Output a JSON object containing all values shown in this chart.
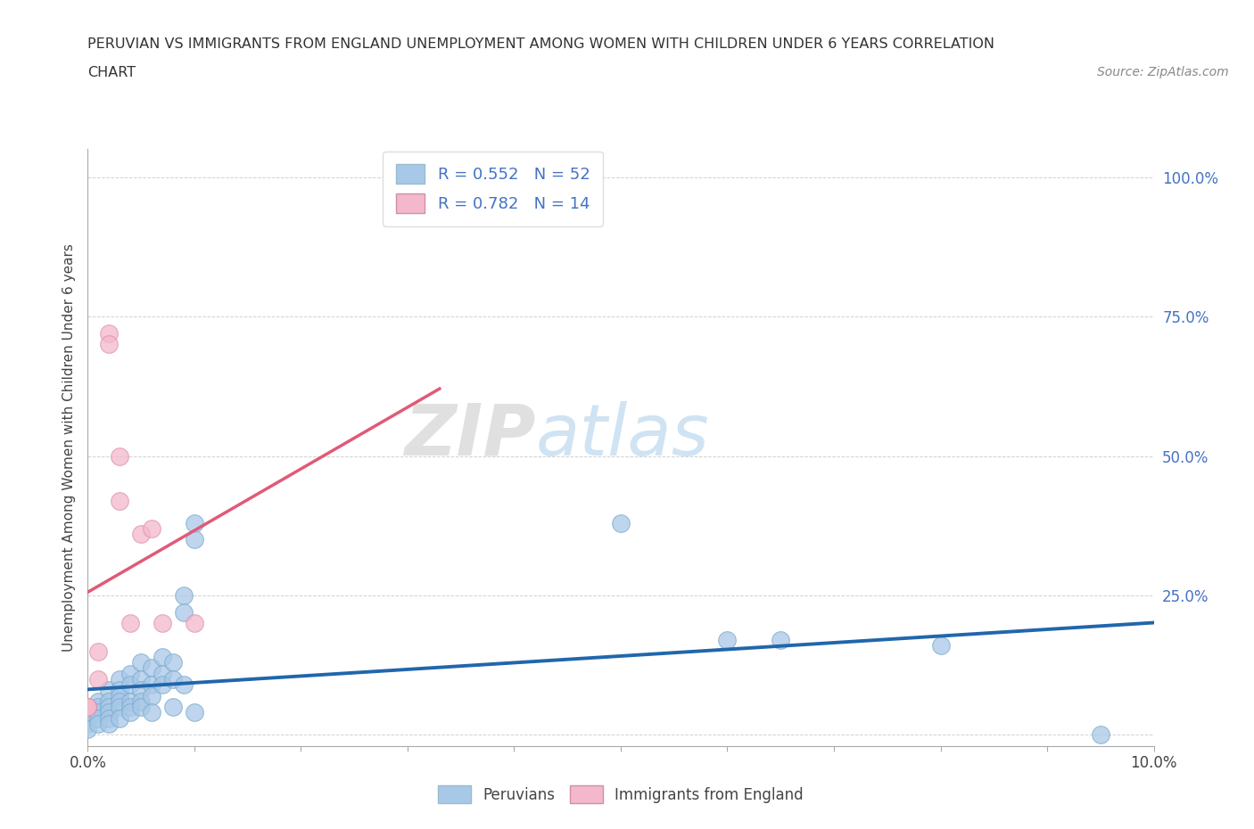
{
  "title_line1": "PERUVIAN VS IMMIGRANTS FROM ENGLAND UNEMPLOYMENT AMONG WOMEN WITH CHILDREN UNDER 6 YEARS CORRELATION",
  "title_line2": "CHART",
  "source": "Source: ZipAtlas.com",
  "ylabel_label": "Unemployment Among Women with Children Under 6 years",
  "xlim": [
    0.0,
    0.1
  ],
  "ylim": [
    -0.02,
    1.05
  ],
  "legend_R_blue": "R = 0.552",
  "legend_N_blue": "N = 52",
  "legend_R_pink": "R = 0.782",
  "legend_N_pink": "N = 14",
  "blue_color": "#a8c8e8",
  "pink_color": "#f4b8cc",
  "blue_line_color": "#2166ac",
  "pink_line_color": "#e05a78",
  "watermark_zip": "ZIP",
  "watermark_atlas": "atlas",
  "peruvians": [
    [
      0.0,
      0.05
    ],
    [
      0.0,
      0.04
    ],
    [
      0.0,
      0.02
    ],
    [
      0.0,
      0.01
    ],
    [
      0.001,
      0.06
    ],
    [
      0.001,
      0.05
    ],
    [
      0.001,
      0.04
    ],
    [
      0.001,
      0.03
    ],
    [
      0.001,
      0.02
    ],
    [
      0.002,
      0.08
    ],
    [
      0.002,
      0.06
    ],
    [
      0.002,
      0.05
    ],
    [
      0.002,
      0.04
    ],
    [
      0.002,
      0.03
    ],
    [
      0.002,
      0.02
    ],
    [
      0.003,
      0.1
    ],
    [
      0.003,
      0.08
    ],
    [
      0.003,
      0.07
    ],
    [
      0.003,
      0.06
    ],
    [
      0.003,
      0.05
    ],
    [
      0.003,
      0.03
    ],
    [
      0.004,
      0.11
    ],
    [
      0.004,
      0.09
    ],
    [
      0.004,
      0.06
    ],
    [
      0.004,
      0.05
    ],
    [
      0.004,
      0.04
    ],
    [
      0.005,
      0.13
    ],
    [
      0.005,
      0.1
    ],
    [
      0.005,
      0.08
    ],
    [
      0.005,
      0.06
    ],
    [
      0.005,
      0.05
    ],
    [
      0.006,
      0.12
    ],
    [
      0.006,
      0.09
    ],
    [
      0.006,
      0.07
    ],
    [
      0.006,
      0.04
    ],
    [
      0.007,
      0.14
    ],
    [
      0.007,
      0.11
    ],
    [
      0.007,
      0.09
    ],
    [
      0.008,
      0.13
    ],
    [
      0.008,
      0.1
    ],
    [
      0.008,
      0.05
    ],
    [
      0.009,
      0.25
    ],
    [
      0.009,
      0.22
    ],
    [
      0.009,
      0.09
    ],
    [
      0.01,
      0.38
    ],
    [
      0.01,
      0.35
    ],
    [
      0.01,
      0.04
    ],
    [
      0.05,
      0.38
    ],
    [
      0.06,
      0.17
    ],
    [
      0.065,
      0.17
    ],
    [
      0.08,
      0.16
    ],
    [
      0.095,
      0.0
    ]
  ],
  "england": [
    [
      0.0,
      0.05
    ],
    [
      0.0,
      0.05
    ],
    [
      0.0,
      0.05
    ],
    [
      0.001,
      0.15
    ],
    [
      0.001,
      0.1
    ],
    [
      0.002,
      0.72
    ],
    [
      0.002,
      0.7
    ],
    [
      0.003,
      0.5
    ],
    [
      0.003,
      0.42
    ],
    [
      0.004,
      0.2
    ],
    [
      0.005,
      0.36
    ],
    [
      0.006,
      0.37
    ],
    [
      0.007,
      0.2
    ],
    [
      0.01,
      0.2
    ]
  ]
}
